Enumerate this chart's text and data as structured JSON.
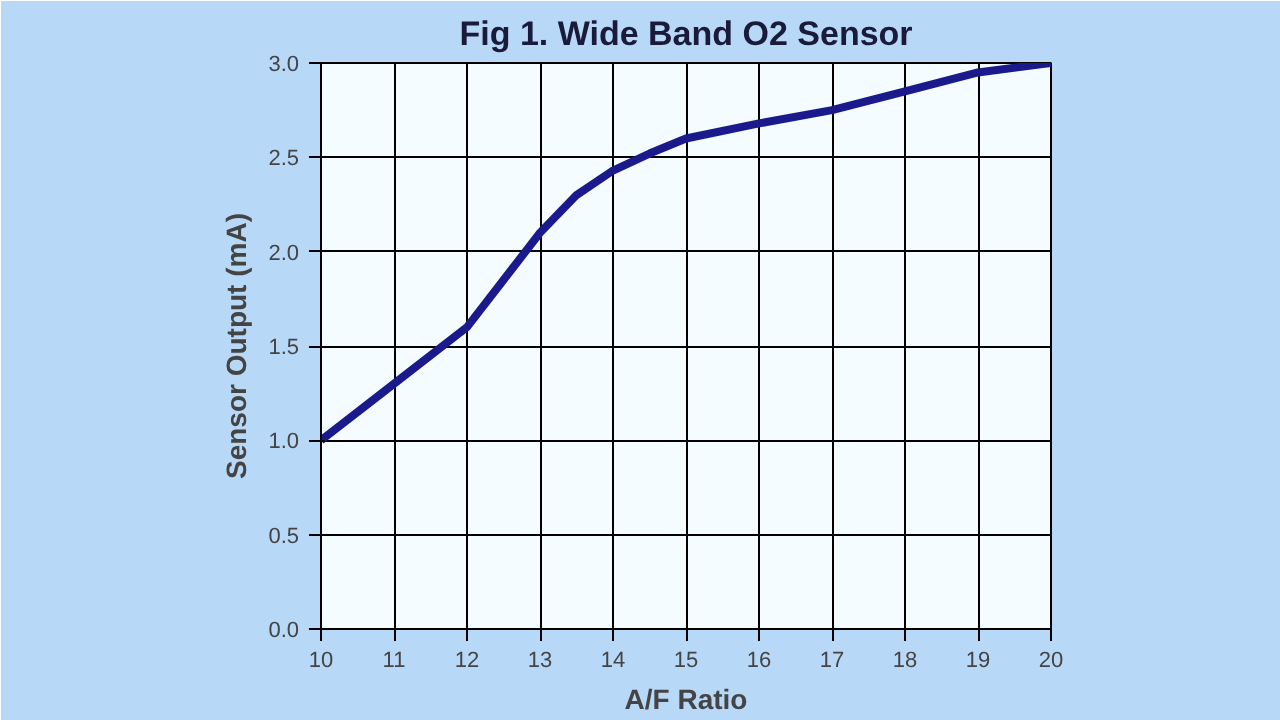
{
  "chart_data": {
    "type": "line",
    "title": "Fig 1. Wide Band O2 Sensor",
    "xlabel": "A/F Ratio",
    "ylabel": "Sensor Output (mA)",
    "x": [
      10,
      11,
      12,
      12.5,
      13,
      13.5,
      14,
      14.5,
      15,
      16,
      17,
      18,
      19,
      20
    ],
    "series": [
      {
        "color": "#1a1a8c",
        "values": [
          1.0,
          1.3,
          1.6,
          1.85,
          2.1,
          2.3,
          2.43,
          2.52,
          2.6,
          2.68,
          2.75,
          2.85,
          2.95,
          3.0
        ]
      }
    ],
    "xlim": [
      10,
      20
    ],
    "xticks": [
      10,
      11,
      12,
      13,
      14,
      15,
      16,
      17,
      18,
      19,
      20
    ],
    "ylim": [
      0,
      3
    ],
    "yticks": [
      {
        "value": 0,
        "label": "0.0"
      },
      0.5,
      {
        "value": 1,
        "label": "1.0"
      },
      1.5,
      {
        "value": 2,
        "label": "2.0"
      },
      2.5,
      {
        "value": 3,
        "label": "3.0"
      }
    ],
    "grid": true,
    "marker": "none",
    "line_style": "solid"
  }
}
